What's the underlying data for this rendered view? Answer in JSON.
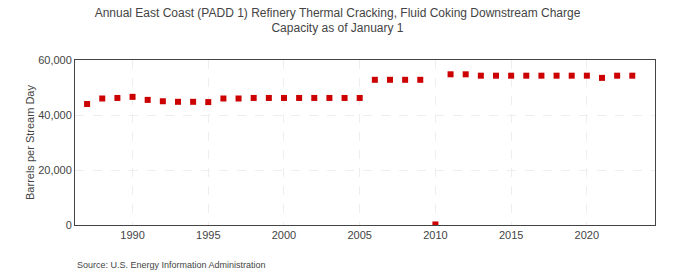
{
  "chart_data": {
    "type": "scatter",
    "title": "Annual East Coast (PADD 1) Refinery Thermal Cracking, Fluid Coking Downstream Charge\nCapacity as of January 1",
    "ylabel": "Barrels per Stream Day",
    "source": "Source: U.S. Energy Information Administration",
    "x": [
      1987,
      1988,
      1989,
      1990,
      1991,
      1992,
      1993,
      1994,
      1995,
      1996,
      1997,
      1998,
      1999,
      2000,
      2001,
      2002,
      2003,
      2004,
      2005,
      2006,
      2007,
      2008,
      2009,
      2010,
      2011,
      2012,
      2013,
      2014,
      2015,
      2016,
      2017,
      2018,
      2019,
      2020,
      2021,
      2022,
      2023
    ],
    "values": [
      44000,
      46000,
      46200,
      46600,
      45500,
      45000,
      44800,
      44800,
      44700,
      46000,
      46000,
      46200,
      46200,
      46200,
      46200,
      46200,
      46200,
      46200,
      46200,
      52800,
      52800,
      52800,
      52800,
      200,
      54800,
      54800,
      54300,
      54300,
      54300,
      54300,
      54300,
      54300,
      54300,
      54300,
      53500,
      54300,
      54300
    ],
    "color": "#cc0000",
    "marker": "square",
    "xlim": [
      1986.2,
      2024.5
    ],
    "xticks": [
      1990,
      1995,
      2000,
      2005,
      2010,
      2015,
      2020
    ],
    "ylim": [
      0,
      60000
    ],
    "yticks": [
      0,
      {
        "value": 20000,
        "label": "20,000"
      },
      {
        "value": 40000,
        "label": "40,000"
      },
      {
        "value": 60000,
        "label": "60,000"
      }
    ],
    "grid": true
  }
}
